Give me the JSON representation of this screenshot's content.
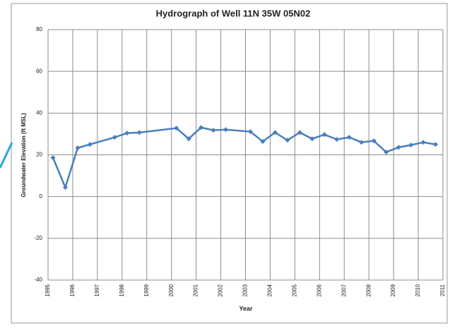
{
  "chart_data": {
    "type": "line",
    "title": "Hydrograph of Well 11N 35W 05N02",
    "x_label": "Year",
    "y_label": "Groundwater Elevation (ft MSL)",
    "x": [
      1995.2,
      1995.7,
      1996.2,
      1996.7,
      1997.7,
      1998.2,
      1998.7,
      2000.2,
      2000.7,
      2001.2,
      2001.7,
      2002.2,
      2003.2,
      2003.7,
      2004.2,
      2004.7,
      2005.2,
      2005.7,
      2006.2,
      2006.7,
      2007.2,
      2007.7,
      2008.2,
      2008.7,
      2009.2,
      2009.7,
      2010.2,
      2010.7
    ],
    "values": [
      18.6,
      4.4,
      23.3,
      25,
      28.4,
      30.4,
      30.7,
      32.8,
      27.7,
      33.1,
      31.8,
      32.1,
      31.1,
      26.4,
      30.7,
      27,
      30.7,
      27.7,
      29.7,
      27.4,
      28.4,
      26,
      26.7,
      21.3,
      23.6,
      24.7,
      26,
      25
    ],
    "color": "#4a7ebb",
    "xlim": [
      1995,
      2011
    ],
    "xticks": [
      1995,
      1996,
      1997,
      1998,
      1999,
      2000,
      2001,
      2002,
      2003,
      2004,
      2005,
      2006,
      2007,
      2008,
      2009,
      2010,
      2011
    ],
    "ylim": [
      -40,
      80
    ],
    "yticks": [
      -40,
      -20,
      0,
      20,
      40,
      60,
      80
    ],
    "grid": true
  }
}
